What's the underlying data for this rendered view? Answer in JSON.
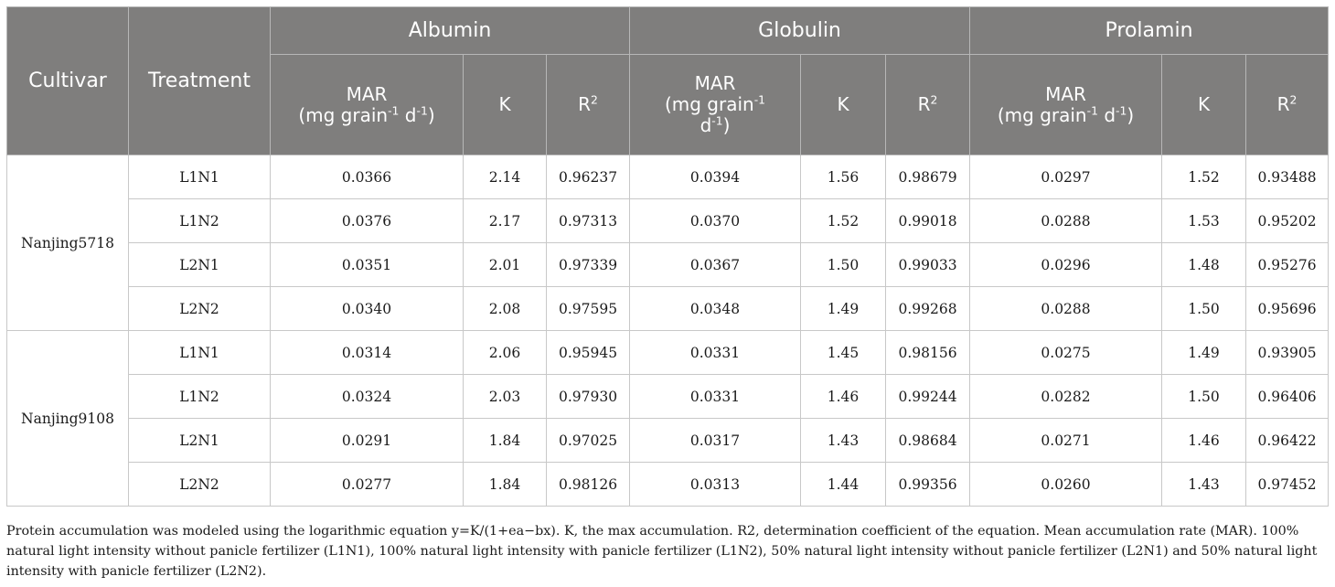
{
  "header": {
    "cultivar": "Cultivar",
    "treatment": "Treatment",
    "groups": [
      "Albumin",
      "Globulin",
      "Prolamin"
    ],
    "mar": "MAR",
    "unit_a": "(mg grain",
    "unit_exp1": "-1",
    "unit_b": " d",
    "unit_exp2": "-1",
    "unit_c": ")",
    "k": "K",
    "r": "R",
    "r_exp": "2"
  },
  "rows": [
    {
      "cultivar": "Nanjing5718",
      "treatment": "L1N1",
      "alb_mar": "0.0366",
      "alb_k": "2.14",
      "alb_r2": "0.96237",
      "glo_mar": "0.0394",
      "glo_k": "1.56",
      "glo_r2": "0.98679",
      "pro_mar": "0.0297",
      "pro_k": "1.52",
      "pro_r2": "0.93488"
    },
    {
      "cultivar": "Nanjing5718",
      "treatment": "L1N2",
      "alb_mar": "0.0376",
      "alb_k": "2.17",
      "alb_r2": "0.97313",
      "glo_mar": "0.0370",
      "glo_k": "1.52",
      "glo_r2": "0.99018",
      "pro_mar": "0.0288",
      "pro_k": "1.53",
      "pro_r2": "0.95202"
    },
    {
      "cultivar": "Nanjing5718",
      "treatment": "L2N1",
      "alb_mar": "0.0351",
      "alb_k": "2.01",
      "alb_r2": "0.97339",
      "glo_mar": "0.0367",
      "glo_k": "1.50",
      "glo_r2": "0.99033",
      "pro_mar": "0.0296",
      "pro_k": "1.48",
      "pro_r2": "0.95276"
    },
    {
      "cultivar": "Nanjing5718",
      "treatment": "L2N2",
      "alb_mar": "0.0340",
      "alb_k": "2.08",
      "alb_r2": "0.97595",
      "glo_mar": "0.0348",
      "glo_k": "1.49",
      "glo_r2": "0.99268",
      "pro_mar": "0.0288",
      "pro_k": "1.50",
      "pro_r2": "0.95696"
    },
    {
      "cultivar": "Nanjing9108",
      "treatment": "L1N1",
      "alb_mar": "0.0314",
      "alb_k": "2.06",
      "alb_r2": "0.95945",
      "glo_mar": "0.0331",
      "glo_k": "1.45",
      "glo_r2": "0.98156",
      "pro_mar": "0.0275",
      "pro_k": "1.49",
      "pro_r2": "0.93905"
    },
    {
      "cultivar": "Nanjing9108",
      "treatment": "L1N2",
      "alb_mar": "0.0324",
      "alb_k": "2.03",
      "alb_r2": "0.97930",
      "glo_mar": "0.0331",
      "glo_k": "1.46",
      "glo_r2": "0.99244",
      "pro_mar": "0.0282",
      "pro_k": "1.50",
      "pro_r2": "0.96406"
    },
    {
      "cultivar": "Nanjing9108",
      "treatment": "L2N1",
      "alb_mar": "0.0291",
      "alb_k": "1.84",
      "alb_r2": "0.97025",
      "glo_mar": "0.0317",
      "glo_k": "1.43",
      "glo_r2": "0.98684",
      "pro_mar": "0.0271",
      "pro_k": "1.46",
      "pro_r2": "0.96422"
    },
    {
      "cultivar": "Nanjing9108",
      "treatment": "L2N2",
      "alb_mar": "0.0277",
      "alb_k": "1.84",
      "alb_r2": "0.98126",
      "glo_mar": "0.0313",
      "glo_k": "1.44",
      "glo_r2": "0.99356",
      "pro_mar": "0.0260",
      "pro_k": "1.43",
      "pro_r2": "0.97452"
    }
  ],
  "footnote": "Protein accumulation was modeled using the logarithmic equation y=K/(1+ea−bx). K, the max accumulation. R2, determination coefficient of the equation. Mean accumulation rate (MAR). 100% natural light intensity without panicle fertilizer (L1N1), 100% natural light intensity with panicle fertilizer (L1N2), 50% natural light intensity without panicle fertilizer (L2N1) and 50% natural light intensity with panicle fertilizer (L2N2).",
  "colors": {
    "header_bg": "#7f7e7d",
    "header_text": "#ffffff",
    "grid": "#c8c8c8"
  }
}
